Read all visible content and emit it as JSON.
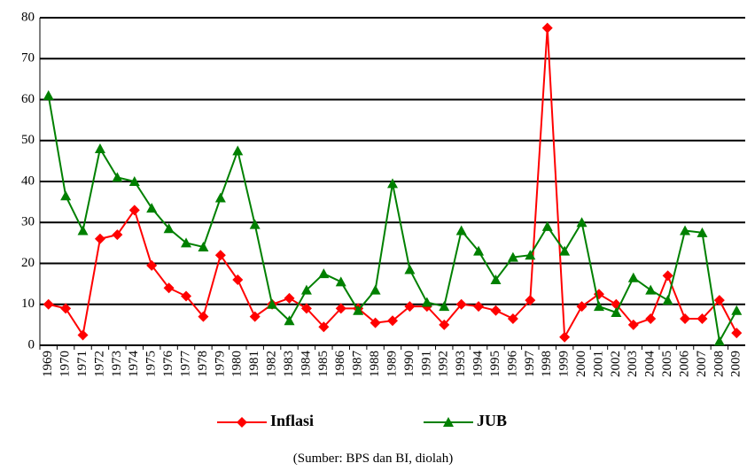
{
  "chart_data": {
    "type": "line",
    "categories": [
      "1969",
      "1970",
      "1971",
      "1972",
      "1973",
      "1974",
      "1975",
      "1976",
      "1977",
      "1978",
      "1979",
      "1980",
      "1981",
      "1982",
      "1983",
      "1984",
      "1985",
      "1986",
      "1987",
      "1988",
      "1989",
      "1990",
      "1991",
      "1992",
      "1993",
      "1994",
      "1995",
      "1996",
      "1997",
      "1998",
      "1999",
      "2000",
      "2001",
      "2002",
      "2003",
      "2004",
      "2005",
      "2006",
      "2007",
      "2008",
      "2009"
    ],
    "series": [
      {
        "name": "Inflasi",
        "color": "#ff0000",
        "marker": "diamond",
        "values": [
          10,
          9,
          2.5,
          26,
          27,
          33,
          19.5,
          14,
          12,
          7,
          22,
          16,
          7,
          10,
          11.5,
          9,
          4.5,
          9,
          9,
          5.5,
          6,
          9.5,
          9.5,
          5,
          10,
          9.5,
          8.5,
          6.5,
          11,
          77.5,
          2,
          9.5,
          12.5,
          10,
          5,
          6.5,
          17,
          6.5,
          6.5,
          11,
          3
        ]
      },
      {
        "name": "JUB",
        "color": "#008000",
        "marker": "triangle",
        "values": [
          61,
          36.5,
          28,
          48,
          41,
          40,
          33.5,
          28.5,
          25,
          24,
          36,
          47.5,
          29.5,
          10,
          6,
          13.5,
          17.5,
          15.5,
          8.5,
          13.5,
          39.5,
          18.5,
          10.5,
          9.5,
          28,
          23,
          16,
          21.5,
          22,
          29,
          23,
          30,
          9.5,
          8,
          16.5,
          13.5,
          11,
          28,
          27.5,
          1,
          8.5
        ]
      }
    ],
    "ylim": [
      0,
      80
    ],
    "yticks": [
      0,
      10,
      20,
      30,
      40,
      50,
      60,
      70,
      80
    ],
    "grid": true,
    "source": "(Sumber: BPS dan BI, diolah)"
  }
}
